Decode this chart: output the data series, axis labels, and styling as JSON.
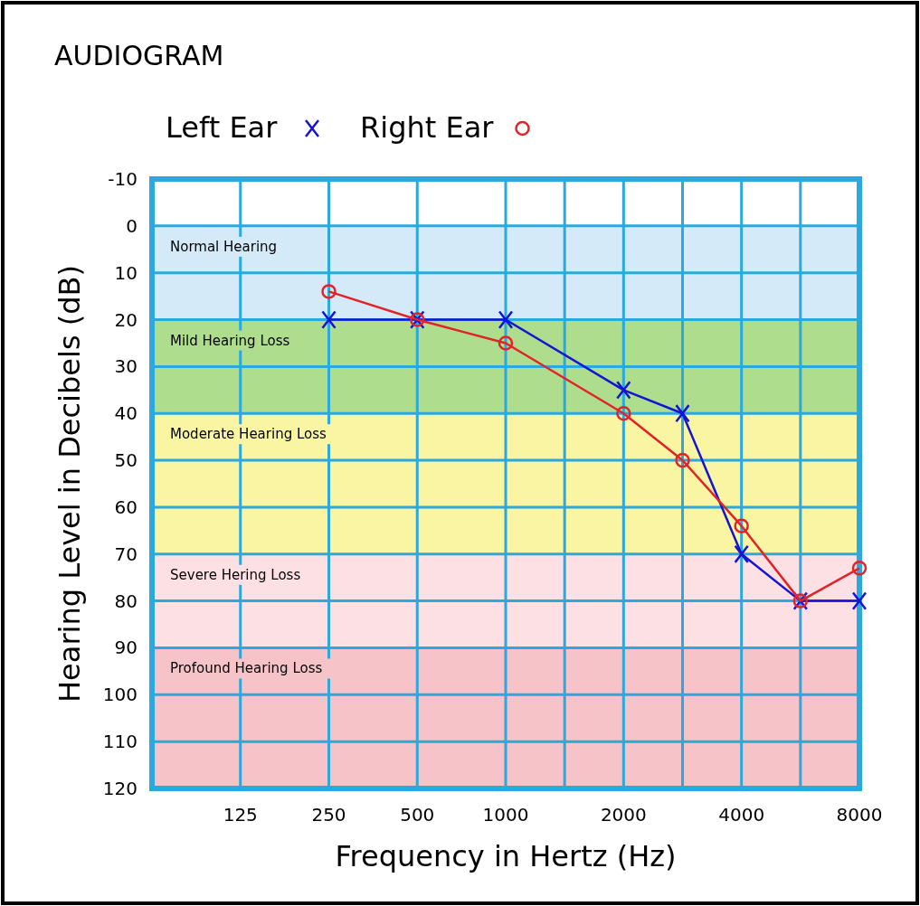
{
  "chart_data": {
    "type": "line",
    "title": "AUDIOGRAM",
    "xlabel": "Frequency in Hertz (Hz)",
    "ylabel": "Hearing Level in Decibels (dB)",
    "categories": [
      "125",
      "250",
      "500",
      "1000",
      null,
      "2000",
      null,
      "4000",
      null,
      "8000"
    ],
    "series": [
      {
        "name": "Left Ear",
        "color": "#1414d2",
        "marker": "cross",
        "values": [
          null,
          20,
          20,
          20,
          null,
          35,
          40,
          70,
          80,
          80
        ]
      },
      {
        "name": "Right Ear",
        "color": "#e0242a",
        "marker": "circle",
        "values": [
          null,
          14,
          20,
          25,
          null,
          40,
          50,
          64,
          80,
          73
        ]
      }
    ],
    "ylim": [
      120,
      -10
    ],
    "yticks": [
      -10,
      0,
      10,
      20,
      30,
      40,
      50,
      60,
      70,
      80,
      90,
      100,
      110,
      120
    ],
    "bands": [
      {
        "axis": "y",
        "from": 0,
        "to": 20,
        "label": "Normal Hearing",
        "color": "#d5eaf8"
      },
      {
        "axis": "y",
        "from": 20,
        "to": 40,
        "label": "Mild Hearing Loss",
        "color": "#aedd8e"
      },
      {
        "axis": "y",
        "from": 40,
        "to": 70,
        "label": "Moderate Hearing Loss",
        "color": "#f9f5a2"
      },
      {
        "axis": "y",
        "from": 70,
        "to": 90,
        "label": "Severe Hering Loss",
        "color": "#fce0e4"
      },
      {
        "axis": "y",
        "from": 90,
        "to": 120,
        "label": "Profound Hearing Loss",
        "color": "#f6c3c8"
      }
    ],
    "grid": true,
    "legend": "top",
    "line_style": "solid"
  }
}
